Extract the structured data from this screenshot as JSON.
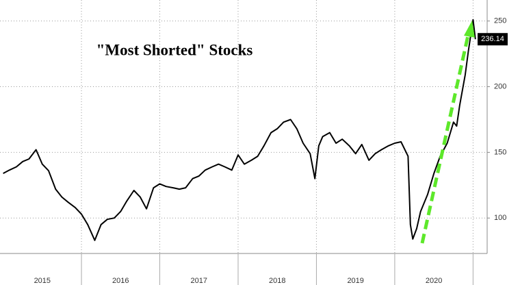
{
  "chart_data": {
    "type": "line",
    "title": "\"Most Shorted\" Stocks",
    "color": "#000000",
    "x": [
      2015.0,
      2015.08,
      2015.17,
      2015.25,
      2015.33,
      2015.42,
      2015.5,
      2015.58,
      2015.67,
      2015.75,
      2015.83,
      2015.92,
      2016.0,
      2016.08,
      2016.17,
      2016.25,
      2016.33,
      2016.42,
      2016.5,
      2016.58,
      2016.67,
      2016.75,
      2016.83,
      2016.92,
      2017.0,
      2017.08,
      2017.17,
      2017.25,
      2017.33,
      2017.42,
      2017.5,
      2017.58,
      2017.67,
      2017.75,
      2017.83,
      2017.92,
      2018.0,
      2018.08,
      2018.17,
      2018.25,
      2018.33,
      2018.42,
      2018.5,
      2018.58,
      2018.67,
      2018.75,
      2018.83,
      2018.92,
      2018.98,
      2019.03,
      2019.08,
      2019.17,
      2019.25,
      2019.33,
      2019.42,
      2019.5,
      2019.58,
      2019.67,
      2019.75,
      2019.83,
      2019.92,
      2020.0,
      2020.08,
      2020.17,
      2020.2,
      2020.23,
      2020.28,
      2020.33,
      2020.42,
      2020.5,
      2020.58,
      2020.67,
      2020.75,
      2020.79,
      2020.83,
      2020.9,
      2020.94,
      2020.98,
      2021.0,
      2021.03
    ],
    "values": [
      134,
      136.5,
      139,
      143,
      145,
      152,
      141,
      136,
      122,
      116,
      112,
      108,
      103,
      95,
      83,
      95,
      99,
      100,
      105,
      113,
      121,
      116,
      107,
      123,
      126,
      124,
      123,
      122,
      123,
      130,
      132,
      136.5,
      139,
      141,
      139,
      136.5,
      148,
      141,
      144,
      147,
      155,
      165,
      168,
      173,
      175,
      168,
      157,
      149,
      130,
      155,
      162,
      165,
      157,
      160,
      155,
      149,
      156,
      144,
      149,
      152,
      155,
      157,
      158,
      147,
      95,
      84,
      92,
      105,
      118,
      134,
      147,
      157,
      173,
      170,
      186,
      209,
      227,
      243,
      251,
      236.14
    ],
    "value_labels": [
      null,
      null,
      null,
      null,
      null,
      null,
      null,
      null,
      null,
      null,
      null,
      null,
      null,
      null,
      null,
      null,
      null,
      null,
      null,
      null,
      null,
      null,
      null,
      null,
      null,
      null,
      null,
      null,
      null,
      null,
      null,
      null,
      null,
      null,
      null,
      null,
      null,
      null,
      null,
      null,
      null,
      null,
      null,
      null,
      null,
      null,
      null,
      null,
      null,
      null,
      null,
      null,
      null,
      null,
      null,
      null,
      null,
      null,
      null,
      null,
      null,
      null,
      null,
      null,
      null,
      null,
      null,
      null,
      null,
      null,
      null,
      null,
      null,
      null,
      null,
      null,
      null,
      null,
      null,
      "236.14"
    ],
    "xlim": [
      2014.96,
      2021.18
    ],
    "xticks": [
      {
        "value": 2015.5,
        "label": "2015"
      },
      {
        "value": 2016.5,
        "label": "2016"
      },
      {
        "value": 2017.5,
        "label": "2017"
      },
      {
        "value": 2018.5,
        "label": "2018"
      },
      {
        "value": 2019.5,
        "label": "2019"
      },
      {
        "value": 2020.5,
        "label": "2020"
      }
    ],
    "xgrid": [
      2016,
      2017,
      2018,
      2019,
      2020,
      2021
    ],
    "ylim": [
      73,
      266
    ],
    "yticks": [
      100,
      150,
      200,
      250
    ],
    "grid": true
  }
}
